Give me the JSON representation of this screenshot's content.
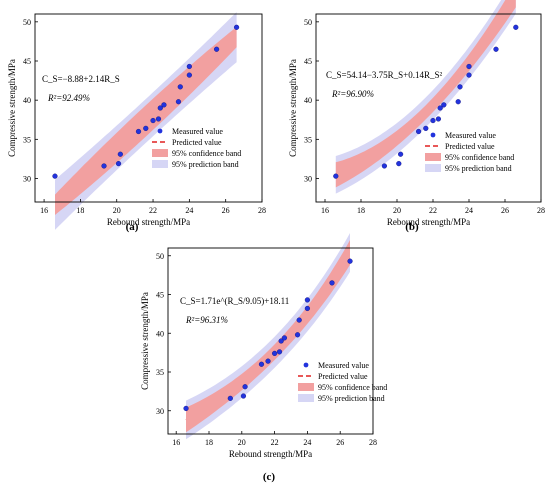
{
  "colors": {
    "measured": "#2233dd",
    "predicted": "#e02020",
    "confidence": "#f2a0a0",
    "prediction": "#d6d6f5",
    "axis": "#000000"
  },
  "chart_data": [
    {
      "type": "scatter",
      "panel_label": "(a)",
      "xlabel": "Rebound strength/MPa",
      "ylabel": "Compressive strength/MPa",
      "equation": "C_S=−8.88+2.14R_S",
      "r2": "R²=92.49%",
      "xlim": [
        15.5,
        28
      ],
      "ylim": [
        27,
        51
      ],
      "xticks": [
        16,
        18,
        20,
        22,
        24,
        26,
        28
      ],
      "yticks": [
        30,
        35,
        40,
        45,
        50
      ],
      "legend": [
        "Measured value",
        "Predicted value",
        "95% confidence band",
        "95% prediction band"
      ],
      "legend_position": "bottom-right",
      "measured": [
        {
          "x": 16.6,
          "y": 30.3
        },
        {
          "x": 19.3,
          "y": 31.6
        },
        {
          "x": 20.1,
          "y": 31.9
        },
        {
          "x": 20.2,
          "y": 33.1
        },
        {
          "x": 21.2,
          "y": 36.0
        },
        {
          "x": 21.6,
          "y": 36.4
        },
        {
          "x": 22.0,
          "y": 37.4
        },
        {
          "x": 22.3,
          "y": 37.6
        },
        {
          "x": 22.4,
          "y": 39.0
        },
        {
          "x": 22.6,
          "y": 39.4
        },
        {
          "x": 23.4,
          "y": 39.8
        },
        {
          "x": 23.5,
          "y": 41.7
        },
        {
          "x": 24.0,
          "y": 43.2
        },
        {
          "x": 24.0,
          "y": 44.3
        },
        {
          "x": 25.5,
          "y": 46.5
        },
        {
          "x": 26.6,
          "y": 49.3
        }
      ],
      "predicted_range": [
        16.6,
        26.6
      ],
      "ci_halfwidth": {
        "center": 2.0,
        "edge": 1.3
      },
      "pi_halfwidth": {
        "center": 2.8,
        "edge": 3.2
      }
    },
    {
      "type": "scatter",
      "panel_label": "(b)",
      "xlabel": "Rebound strength/MPa",
      "ylabel": "Compressive strength/MPa",
      "equation": "C_S=54.14−3.75R_S+0.14R_S²",
      "r2": "R²=96.90%",
      "xlim": [
        15.5,
        28
      ],
      "ylim": [
        27,
        51
      ],
      "xticks": [
        16,
        18,
        20,
        22,
        24,
        26,
        28
      ],
      "yticks": [
        30,
        35,
        40,
        45,
        50
      ],
      "legend": [
        "Measured value",
        "Predicted value",
        "95% confidence band",
        "95% prediction band"
      ],
      "legend_position": "bottom-right",
      "measured": [
        {
          "x": 16.6,
          "y": 30.3
        },
        {
          "x": 19.3,
          "y": 31.6
        },
        {
          "x": 20.1,
          "y": 31.9
        },
        {
          "x": 20.2,
          "y": 33.1
        },
        {
          "x": 21.2,
          "y": 36.0
        },
        {
          "x": 21.6,
          "y": 36.4
        },
        {
          "x": 22.0,
          "y": 37.4
        },
        {
          "x": 22.3,
          "y": 37.6
        },
        {
          "x": 22.4,
          "y": 39.0
        },
        {
          "x": 22.6,
          "y": 39.4
        },
        {
          "x": 23.4,
          "y": 39.8
        },
        {
          "x": 23.5,
          "y": 41.7
        },
        {
          "x": 24.0,
          "y": 43.2
        },
        {
          "x": 24.0,
          "y": 44.3
        },
        {
          "x": 25.5,
          "y": 46.5
        },
        {
          "x": 26.6,
          "y": 49.3
        }
      ],
      "predicted_range": [
        16.6,
        26.6
      ],
      "ci_halfwidth": {
        "center": 0.9,
        "edge": 1.6
      },
      "pi_halfwidth": {
        "center": 1.9,
        "edge": 2.4
      }
    },
    {
      "type": "scatter",
      "panel_label": "(c)",
      "xlabel": "Rebound strength/MPa",
      "ylabel": "Compressive strength/MPa",
      "equation": "C_S=1.71e^(R_S/9.05)+18.11",
      "r2": "R²=96.31%",
      "xlim": [
        15.5,
        28
      ],
      "ylim": [
        27,
        51
      ],
      "xticks": [
        16,
        18,
        20,
        22,
        24,
        26,
        28
      ],
      "yticks": [
        30,
        35,
        40,
        45,
        50
      ],
      "legend": [
        "Measured value",
        "Predicted value",
        "95% confidence band",
        "95% prediction band"
      ],
      "legend_position": "bottom-right",
      "measured": [
        {
          "x": 16.6,
          "y": 30.3
        },
        {
          "x": 19.3,
          "y": 31.6
        },
        {
          "x": 20.1,
          "y": 31.9
        },
        {
          "x": 20.2,
          "y": 33.1
        },
        {
          "x": 21.2,
          "y": 36.0
        },
        {
          "x": 21.6,
          "y": 36.4
        },
        {
          "x": 22.0,
          "y": 37.4
        },
        {
          "x": 22.3,
          "y": 37.6
        },
        {
          "x": 22.4,
          "y": 39.0
        },
        {
          "x": 22.6,
          "y": 39.4
        },
        {
          "x": 23.4,
          "y": 39.8
        },
        {
          "x": 23.5,
          "y": 41.7
        },
        {
          "x": 24.0,
          "y": 43.2
        },
        {
          "x": 24.0,
          "y": 44.3
        },
        {
          "x": 25.5,
          "y": 46.5
        },
        {
          "x": 26.6,
          "y": 49.3
        }
      ],
      "predicted_range": [
        16.6,
        26.6
      ],
      "ci_halfwidth": {
        "center": 1.0,
        "edge": 1.6
      },
      "pi_halfwidth": {
        "center": 2.0,
        "edge": 2.5
      }
    }
  ]
}
